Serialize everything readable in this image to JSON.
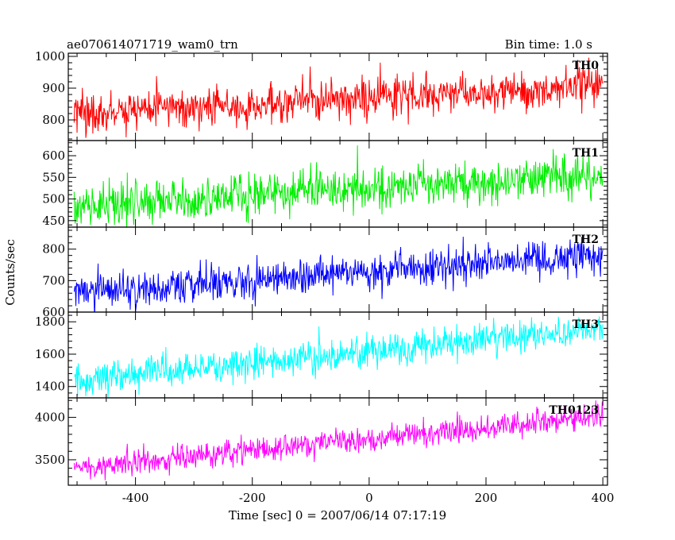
{
  "header": {
    "title": "ae070614071719_wam0_trn",
    "bin_time": "Bin time: 1.0 s"
  },
  "chart_data": {
    "type": "line",
    "xlabel": "Time [sec] 0 = 2007/06/14 07:17:19",
    "ylabel": "Counts/sec",
    "xlim": [
      -515,
      408
    ],
    "xticks": [
      -400,
      -200,
      0,
      200,
      400
    ],
    "x_range": [
      -505,
      400
    ],
    "bin_time": 1.0,
    "series": [
      {
        "name": "TH0",
        "color": "#ff0000",
        "ylim": [
          735,
          1010
        ],
        "yticks": [
          800,
          900,
          1000
        ],
        "trend_start": 820,
        "trend_end": 910,
        "noise_sd": 32
      },
      {
        "name": "TH1",
        "color": "#00ee00",
        "ylim": [
          435,
          635
        ],
        "yticks": [
          450,
          500,
          550,
          600
        ],
        "trend_start": 485,
        "trend_end": 555,
        "noise_sd": 25
      },
      {
        "name": "TH2",
        "color": "#0000ff",
        "ylim": [
          600,
          870
        ],
        "yticks": [
          600,
          700,
          800
        ],
        "trend_start": 660,
        "trend_end": 780,
        "noise_sd": 28
      },
      {
        "name": "TH3",
        "color": "#00ffff",
        "ylim": [
          1330,
          1860
        ],
        "yticks": [
          1400,
          1600,
          1800
        ],
        "trend_start": 1440,
        "trend_end": 1760,
        "noise_sd": 50
      },
      {
        "name": "TH0123",
        "color": "#ff00ff",
        "ylim": [
          3200,
          4230
        ],
        "yticks": [
          3500,
          4000
        ],
        "trend_start": 3400,
        "trend_end": 4010,
        "noise_sd": 75
      }
    ]
  }
}
